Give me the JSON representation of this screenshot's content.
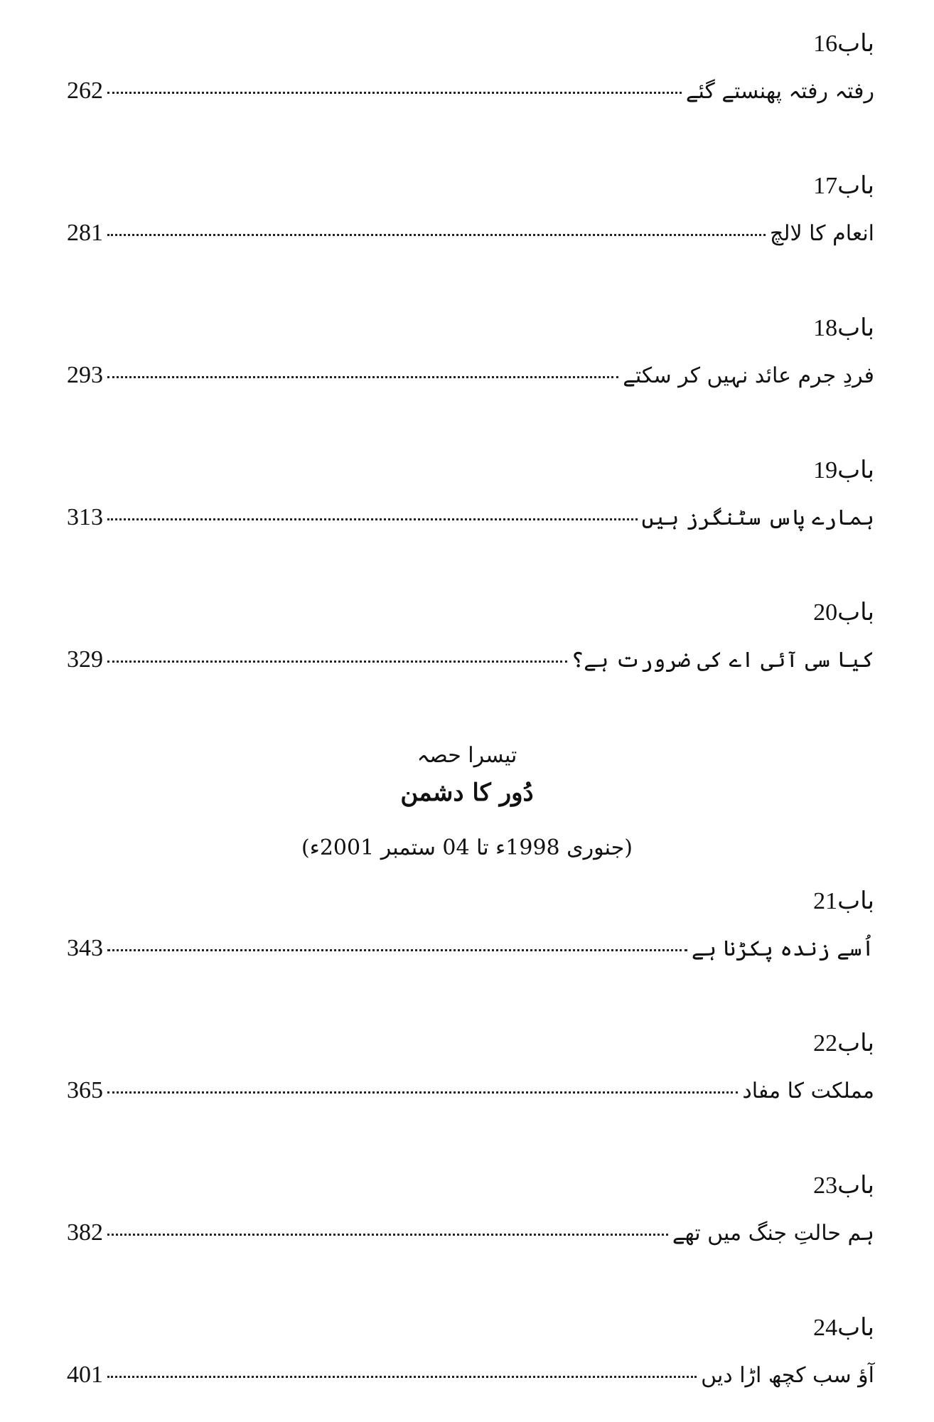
{
  "entries": [
    {
      "label": "باب16",
      "title": "رفتہ رفتہ پھنستے گئے",
      "page": "262"
    },
    {
      "label": "باب17",
      "title": "انعام کا لالچ",
      "page": "281"
    },
    {
      "label": "باب18",
      "title": "فردِ جرم عائد نہیں کر سکتے",
      "page": "293"
    },
    {
      "label": "باب19",
      "title": "ہمارے پاس سٹنگرز ہیں",
      "page": "313"
    },
    {
      "label": "باب20",
      "title": "کیا سی آئی اے کی ضرورت ہے؟",
      "page": "329"
    },
    {
      "label": "باب21",
      "title": "اُسے زندہ پکڑنا ہے",
      "page": "343"
    },
    {
      "label": "باب22",
      "title": "مملکت کا مفاد",
      "page": "365"
    },
    {
      "label": "باب23",
      "title": "ہم حالتِ جنگ میں تھے",
      "page": "382"
    },
    {
      "label": "باب24",
      "title": "آؤ سب کچھ اڑا دیں",
      "page": "401"
    }
  ],
  "part": {
    "heading": "تیسرا حصہ",
    "title": "دُور کا دشمن",
    "dates": "(جنوری 1998ء تا 04 ستمبر 2001ء)"
  }
}
